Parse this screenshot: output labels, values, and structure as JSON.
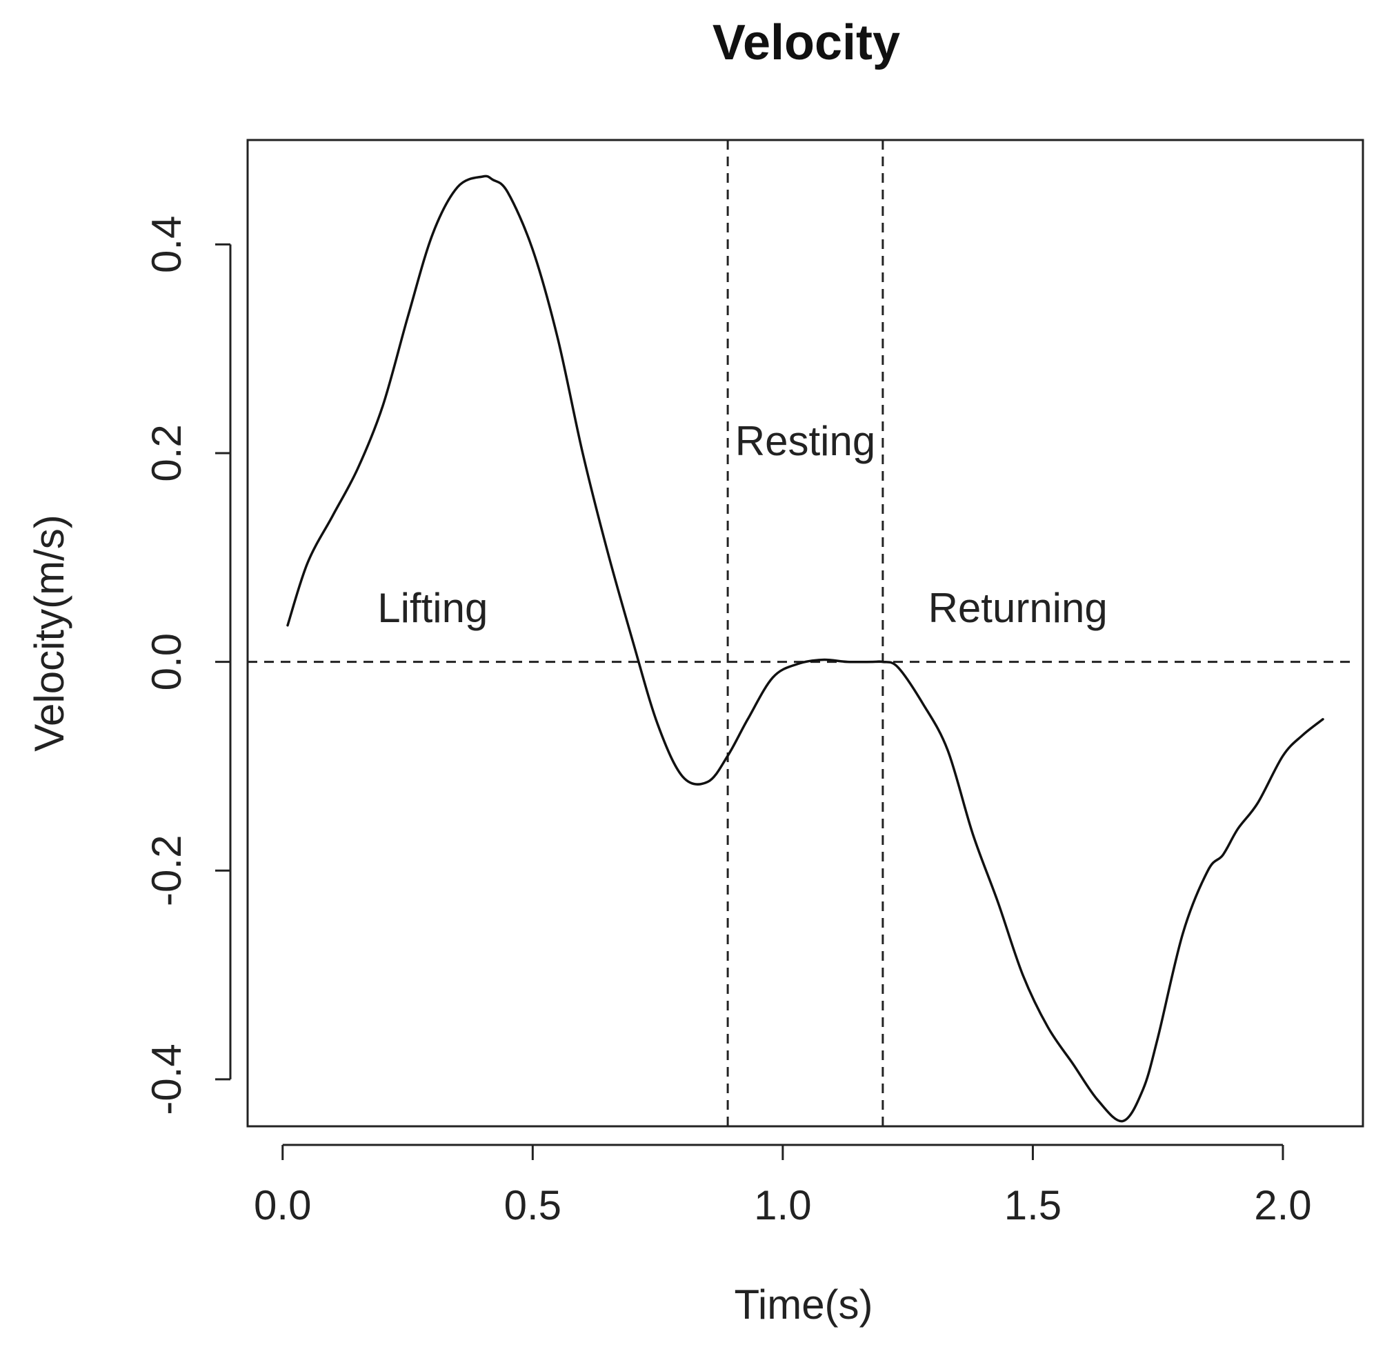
{
  "chart_data": {
    "type": "line",
    "title": "Velocity",
    "xlabel": "Time(s)",
    "ylabel": "Velocity(m/s)",
    "xlim": [
      -0.07,
      2.16
    ],
    "ylim": [
      -0.445,
      0.5
    ],
    "x_ticks": [
      0.0,
      0.5,
      1.0,
      1.5,
      2.0
    ],
    "x_tick_labels": [
      "0.0",
      "0.5",
      "1.0",
      "1.5",
      "2.0"
    ],
    "y_ticks": [
      -0.4,
      -0.2,
      0.0,
      0.2,
      0.4
    ],
    "y_tick_labels": [
      "-0.4",
      "-0.2",
      "0.0",
      "0.2",
      "0.4"
    ],
    "grid": false,
    "legend": null,
    "reference_lines": [
      {
        "orientation": "horizontal",
        "value": 0.0,
        "style": "dashed"
      },
      {
        "orientation": "vertical",
        "value": 0.89,
        "style": "dashed"
      },
      {
        "orientation": "vertical",
        "value": 1.2,
        "style": "dashed"
      }
    ],
    "annotations": [
      {
        "text": "Lifting",
        "x": 0.3,
        "y": 0.038
      },
      {
        "text": "Resting",
        "x": 1.045,
        "y": 0.198
      },
      {
        "text": "Returning",
        "x": 1.47,
        "y": 0.038
      }
    ],
    "series": [
      {
        "name": "Velocity",
        "x": [
          0.01,
          0.05,
          0.1,
          0.15,
          0.2,
          0.25,
          0.3,
          0.35,
          0.4,
          0.42,
          0.45,
          0.5,
          0.55,
          0.6,
          0.65,
          0.7,
          0.75,
          0.8,
          0.85,
          0.89,
          0.93,
          0.98,
          1.03,
          1.08,
          1.13,
          1.18,
          1.2,
          1.23,
          1.28,
          1.33,
          1.38,
          1.43,
          1.48,
          1.53,
          1.58,
          1.63,
          1.68,
          1.72,
          1.75,
          1.8,
          1.85,
          1.88,
          1.91,
          1.95,
          2.0,
          2.04,
          2.08
        ],
        "y": [
          0.035,
          0.095,
          0.14,
          0.185,
          0.245,
          0.33,
          0.41,
          0.455,
          0.465,
          0.462,
          0.45,
          0.395,
          0.31,
          0.2,
          0.105,
          0.02,
          -0.06,
          -0.11,
          -0.115,
          -0.09,
          -0.055,
          -0.015,
          -0.002,
          0.002,
          0.0,
          0.0,
          0.0,
          -0.005,
          -0.04,
          -0.085,
          -0.165,
          -0.23,
          -0.3,
          -0.35,
          -0.385,
          -0.42,
          -0.44,
          -0.41,
          -0.36,
          -0.26,
          -0.2,
          -0.185,
          -0.16,
          -0.135,
          -0.09,
          -0.07,
          -0.055
        ]
      }
    ]
  }
}
